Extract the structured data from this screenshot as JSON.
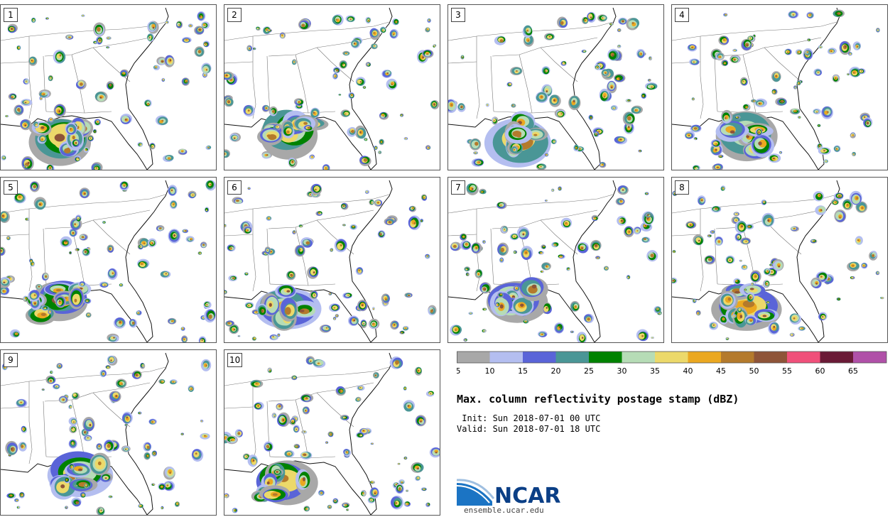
{
  "chart_data": {
    "type": "heatmap",
    "title": "Max. column reflectivity postage stamp (dBZ)",
    "init": " Init: Sun 2018-07-01 00 UTC",
    "valid": "Valid: Sun 2018-07-01 18 UTC",
    "members": [
      "1",
      "2",
      "3",
      "4",
      "5",
      "6",
      "7",
      "8",
      "9",
      "10"
    ],
    "colorbar": {
      "units": "dBZ",
      "levels": [
        5,
        10,
        15,
        20,
        25,
        30,
        35,
        40,
        45,
        50,
        55,
        60,
        65,
        70
      ],
      "tick_labels": [
        "5",
        "10",
        "15",
        "20",
        "25",
        "30",
        "35",
        "40",
        "45",
        "50",
        "55",
        "60",
        "65"
      ],
      "colors": [
        "#a8a8a8",
        "#b4bef0",
        "#5a64d8",
        "#4a9696",
        "#008200",
        "#b6dcb6",
        "#ecd96a",
        "#eba820",
        "#b47a2c",
        "#8e5438",
        "#f0507a",
        "#6a1a36",
        "#b050a8"
      ]
    }
  },
  "branding": {
    "logo_text": "NCAR",
    "site": "ensemble.ucar.edu"
  }
}
